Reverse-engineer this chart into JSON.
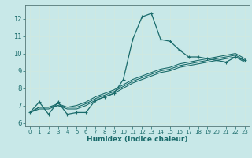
{
  "title": "",
  "xlabel": "Humidex (Indice chaleur)",
  "ylabel": "",
  "bg_color": "#c8e8e8",
  "grid_color": "#d0e8e0",
  "line_color": "#1a6b6b",
  "xlim": [
    -0.5,
    23.5
  ],
  "ylim": [
    5.8,
    12.8
  ],
  "yticks": [
    6,
    7,
    8,
    9,
    10,
    11,
    12
  ],
  "xticks": [
    0,
    1,
    2,
    3,
    4,
    5,
    6,
    7,
    8,
    9,
    10,
    11,
    12,
    13,
    14,
    15,
    16,
    17,
    18,
    19,
    20,
    21,
    22,
    23
  ],
  "series": [
    [
      6.6,
      7.2,
      6.5,
      7.2,
      6.5,
      6.6,
      6.6,
      7.3,
      7.5,
      7.7,
      8.5,
      10.8,
      12.1,
      12.3,
      10.8,
      10.7,
      10.2,
      9.8,
      9.8,
      9.7,
      9.6,
      9.5,
      9.8,
      9.6
    ],
    [
      6.6,
      6.9,
      6.9,
      7.0,
      6.9,
      6.9,
      7.1,
      7.4,
      7.6,
      7.8,
      8.1,
      8.4,
      8.6,
      8.8,
      9.0,
      9.1,
      9.3,
      9.4,
      9.5,
      9.6,
      9.7,
      9.8,
      9.9,
      9.6
    ],
    [
      6.6,
      6.8,
      6.8,
      7.0,
      6.8,
      6.8,
      7.0,
      7.3,
      7.5,
      7.7,
      8.0,
      8.3,
      8.5,
      8.7,
      8.9,
      9.0,
      9.2,
      9.3,
      9.4,
      9.5,
      9.6,
      9.7,
      9.8,
      9.5
    ],
    [
      6.6,
      6.9,
      6.9,
      7.1,
      6.9,
      7.0,
      7.2,
      7.5,
      7.7,
      7.9,
      8.2,
      8.5,
      8.7,
      8.9,
      9.1,
      9.2,
      9.4,
      9.5,
      9.6,
      9.7,
      9.8,
      9.9,
      10.0,
      9.7
    ]
  ]
}
